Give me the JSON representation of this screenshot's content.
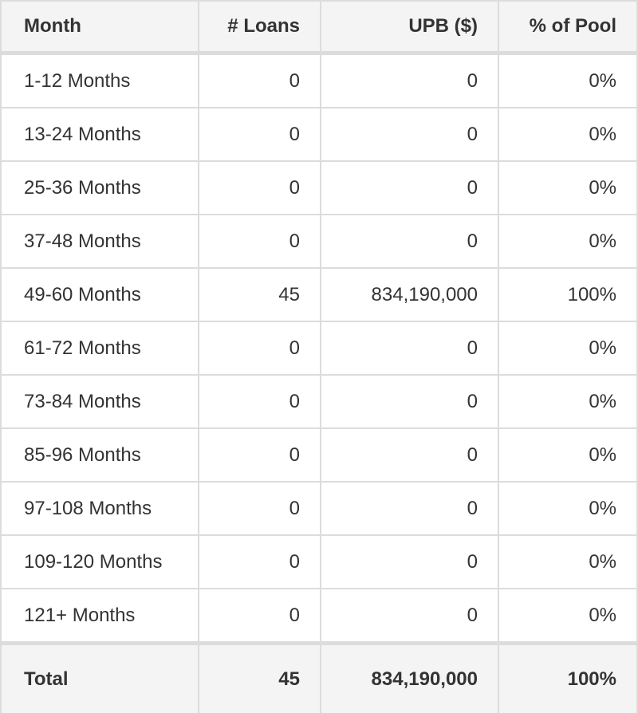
{
  "table": {
    "columns": [
      {
        "key": "month",
        "label": "Month",
        "align": "left"
      },
      {
        "key": "loans",
        "label": "# Loans",
        "align": "right"
      },
      {
        "key": "upb",
        "label": "UPB ($)",
        "align": "right"
      },
      {
        "key": "pct",
        "label": "% of Pool",
        "align": "right"
      }
    ],
    "rows": [
      {
        "month": "1-12 Months",
        "loans": "0",
        "upb": "0",
        "pct": "0%"
      },
      {
        "month": "13-24 Months",
        "loans": "0",
        "upb": "0",
        "pct": "0%"
      },
      {
        "month": "25-36 Months",
        "loans": "0",
        "upb": "0",
        "pct": "0%"
      },
      {
        "month": "37-48 Months",
        "loans": "0",
        "upb": "0",
        "pct": "0%"
      },
      {
        "month": "49-60 Months",
        "loans": "45",
        "upb": "834,190,000",
        "pct": "100%"
      },
      {
        "month": "61-72 Months",
        "loans": "0",
        "upb": "0",
        "pct": "0%"
      },
      {
        "month": "73-84 Months",
        "loans": "0",
        "upb": "0",
        "pct": "0%"
      },
      {
        "month": "85-96 Months",
        "loans": "0",
        "upb": "0",
        "pct": "0%"
      },
      {
        "month": "97-108 Months",
        "loans": "0",
        "upb": "0",
        "pct": "0%"
      },
      {
        "month": "109-120 Months",
        "loans": "0",
        "upb": "0",
        "pct": "0%"
      },
      {
        "month": "121+ Months",
        "loans": "0",
        "upb": "0",
        "pct": "0%"
      }
    ],
    "total": {
      "month": "Total",
      "loans": "45",
      "upb": "834,190,000",
      "pct": "100%"
    }
  },
  "colors": {
    "header_bg": "#f4f4f4",
    "row_bg": "#ffffff",
    "border": "#dcdcdc",
    "text": "#333333"
  },
  "chart_data": {
    "type": "table",
    "columns": [
      "Month",
      "# Loans",
      "UPB ($)",
      "% of Pool"
    ],
    "rows": [
      [
        "1-12 Months",
        0,
        0,
        "0%"
      ],
      [
        "13-24 Months",
        0,
        0,
        "0%"
      ],
      [
        "25-36 Months",
        0,
        0,
        "0%"
      ],
      [
        "37-48 Months",
        0,
        0,
        "0%"
      ],
      [
        "49-60 Months",
        45,
        834190000,
        "100%"
      ],
      [
        "61-72 Months",
        0,
        0,
        "0%"
      ],
      [
        "73-84 Months",
        0,
        0,
        "0%"
      ],
      [
        "85-96 Months",
        0,
        0,
        "0%"
      ],
      [
        "97-108 Months",
        0,
        0,
        "0%"
      ],
      [
        "109-120 Months",
        0,
        0,
        "0%"
      ],
      [
        "121+ Months",
        0,
        0,
        "0%"
      ]
    ],
    "total": [
      "Total",
      45,
      834190000,
      "100%"
    ]
  }
}
